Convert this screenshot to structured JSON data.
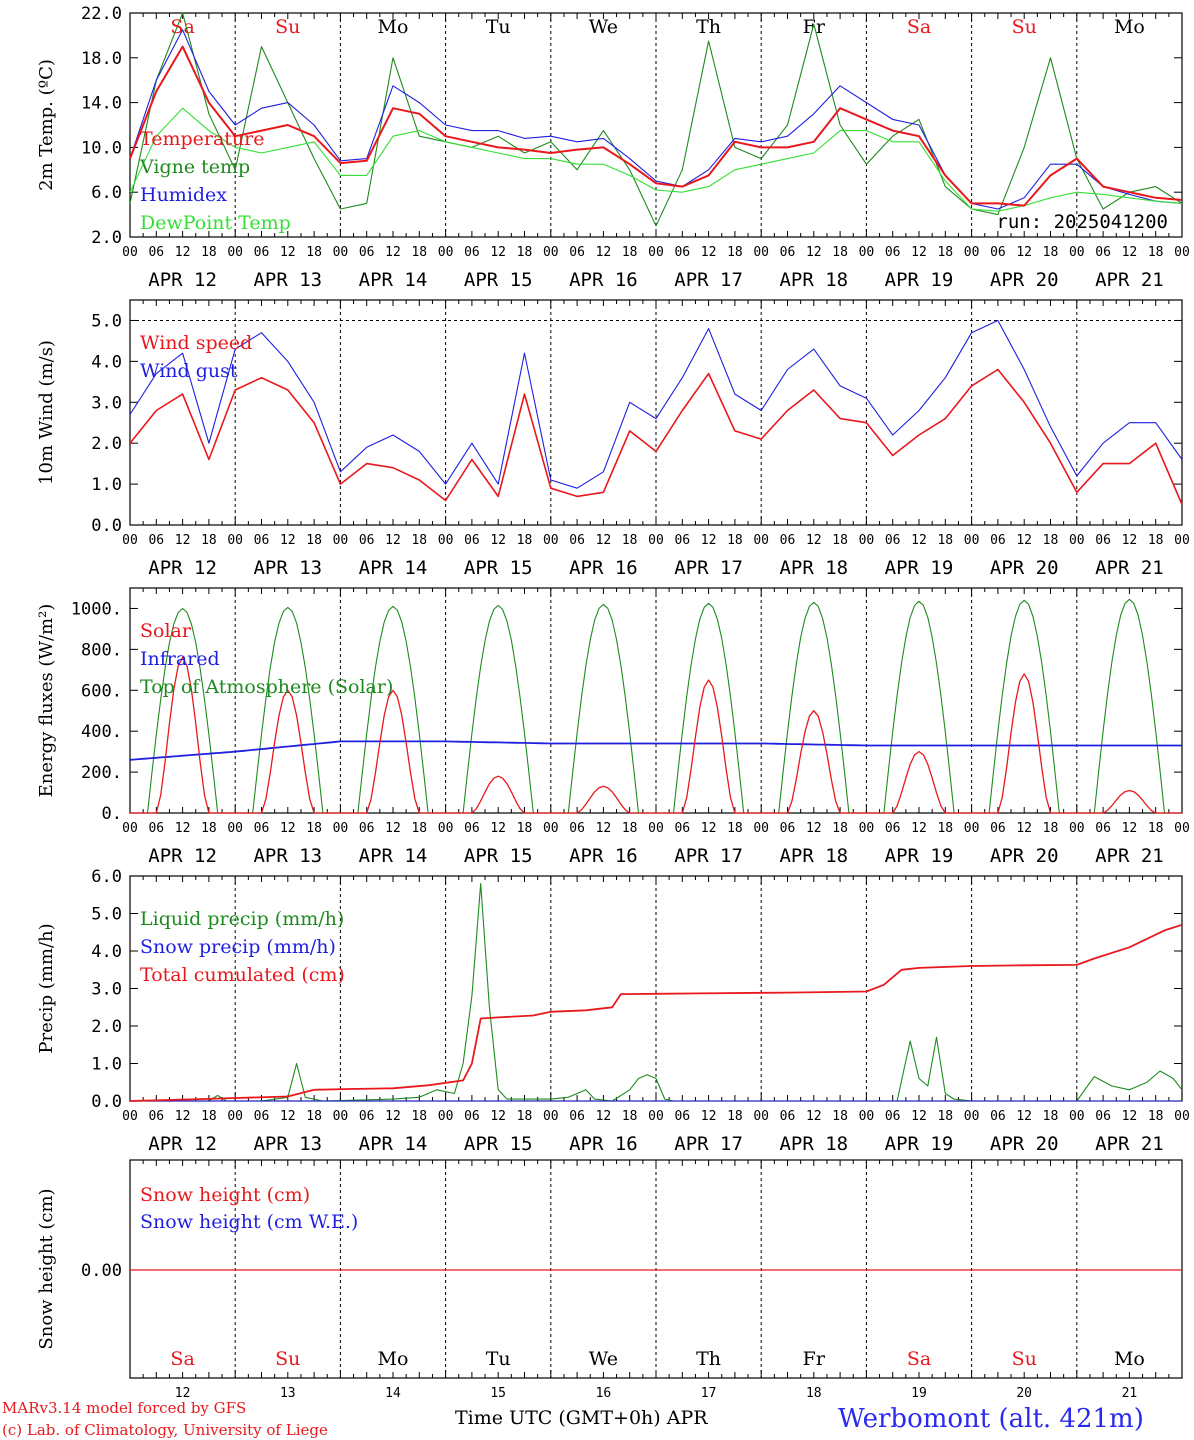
{
  "colors": {
    "red": "#e8181d",
    "green": "#1f8a1f",
    "blue": "#1f1fe0",
    "lime": "#33e033",
    "black": "#000000",
    "title_blue": "#2a2aee"
  },
  "days": [
    "Sa",
    "Su",
    "Mo",
    "Tu",
    "We",
    "Th",
    "Fr",
    "Sa",
    "Su",
    "Mo"
  ],
  "day_colors": [
    "red",
    "red",
    "black",
    "black",
    "black",
    "black",
    "black",
    "red",
    "red",
    "black"
  ],
  "date_labels": [
    "APR 12",
    "APR 13",
    "APR 14",
    "APR 15",
    "APR 16",
    "APR 17",
    "APR 18",
    "APR 19",
    "APR 20",
    "APR 21"
  ],
  "hour_labels": [
    "00",
    "06",
    "12",
    "18"
  ],
  "day_numbers": [
    "12",
    "13",
    "14",
    "15",
    "16",
    "17",
    "18",
    "19",
    "20",
    "21"
  ],
  "footer": {
    "model": "MARv3.14 model forced by GFS",
    "lab": "(c) Lab. of Climatology, University of Liege",
    "xlabel": "Time UTC (GMT+0h) APR",
    "station": "Werbomont (alt. 421m)"
  },
  "chart_data": [
    {
      "type": "line",
      "ylabel": "2m Temp. (ºC)",
      "ylim": [
        2.0,
        22.0
      ],
      "yticks": [
        "2.0",
        "6.0",
        "10.0",
        "14.0",
        "18.0",
        "22.0"
      ],
      "annotation": "run: 2025041200",
      "x_hours": [
        0,
        6,
        12,
        18,
        24,
        30,
        36,
        42,
        48,
        54,
        60,
        66,
        72,
        78,
        84,
        90,
        96,
        102,
        108,
        114,
        120,
        126,
        132,
        138,
        144,
        150,
        156,
        162,
        168,
        174,
        180,
        186,
        192,
        198,
        204,
        210,
        216,
        222,
        228,
        234,
        240
      ],
      "series": [
        {
          "name": "Temperature",
          "color": "red",
          "values": [
            9.0,
            15.0,
            19.0,
            14.0,
            11.0,
            11.5,
            12.0,
            11.0,
            8.6,
            8.8,
            13.5,
            13.0,
            11.0,
            10.5,
            10.0,
            9.8,
            9.5,
            9.8,
            10.0,
            8.5,
            6.8,
            6.5,
            7.5,
            10.5,
            10.0,
            10.0,
            10.5,
            13.5,
            12.5,
            11.5,
            11.0,
            7.5,
            5.0,
            5.0,
            4.8,
            7.5,
            9.0,
            6.5,
            6.0,
            5.5,
            5.3
          ]
        },
        {
          "name": "Vigne temp",
          "color": "green",
          "values": [
            5.0,
            16.0,
            22.0,
            13.0,
            8.0,
            19.0,
            14.0,
            9.0,
            4.5,
            5.0,
            18.0,
            11.0,
            10.5,
            10.0,
            11.0,
            9.5,
            10.5,
            8.0,
            11.5,
            8.0,
            3.0,
            8.0,
            19.5,
            10.0,
            9.0,
            12.0,
            21.0,
            12.0,
            8.5,
            11.0,
            12.5,
            6.5,
            4.5,
            4.0,
            10.0,
            18.0,
            9.0,
            4.5,
            6.0,
            6.5,
            5.0
          ]
        },
        {
          "name": "Humidex",
          "color": "blue",
          "values": [
            9.0,
            16.0,
            20.5,
            15.0,
            12.0,
            13.5,
            14.0,
            12.0,
            8.8,
            9.0,
            15.5,
            14.0,
            12.0,
            11.5,
            11.5,
            10.8,
            11.0,
            10.5,
            10.8,
            9.0,
            7.0,
            6.5,
            8.0,
            10.8,
            10.5,
            11.0,
            13.0,
            15.5,
            14.0,
            12.5,
            12.0,
            7.5,
            5.0,
            4.5,
            5.5,
            8.5,
            8.5,
            6.5,
            5.8,
            5.2,
            5.0
          ]
        },
        {
          "name": "DewPoint Temp",
          "color": "lime",
          "values": [
            6.0,
            11.0,
            13.5,
            11.5,
            10.0,
            9.5,
            10.0,
            10.5,
            7.5,
            7.5,
            11.0,
            11.5,
            10.5,
            10.0,
            9.5,
            9.0,
            9.0,
            8.5,
            8.5,
            7.5,
            6.2,
            6.0,
            6.5,
            8.0,
            8.5,
            9.0,
            9.5,
            11.5,
            11.5,
            10.5,
            10.5,
            7.0,
            4.5,
            4.3,
            4.8,
            5.5,
            6.0,
            5.8,
            5.5,
            5.2,
            5.0
          ]
        }
      ]
    },
    {
      "type": "line",
      "ylabel": "10m Wind (m/s)",
      "ylim": [
        0.0,
        5.5
      ],
      "yticks": [
        "0.0",
        "1.0",
        "2.0",
        "3.0",
        "4.0",
        "5.0"
      ],
      "dashed_y": 5.0,
      "x_hours": [
        0,
        6,
        12,
        18,
        24,
        30,
        36,
        42,
        48,
        54,
        60,
        66,
        72,
        78,
        84,
        90,
        96,
        102,
        108,
        114,
        120,
        126,
        132,
        138,
        144,
        150,
        156,
        162,
        168,
        174,
        180,
        186,
        192,
        198,
        204,
        210,
        216,
        222,
        228,
        234,
        240
      ],
      "series": [
        {
          "name": "Wind speed",
          "color": "red",
          "values": [
            2.0,
            2.8,
            3.2,
            1.6,
            3.3,
            3.6,
            3.3,
            2.5,
            1.0,
            1.5,
            1.4,
            1.1,
            0.6,
            1.6,
            0.7,
            3.2,
            0.9,
            0.7,
            0.8,
            2.3,
            1.8,
            2.8,
            3.7,
            2.3,
            2.1,
            2.8,
            3.3,
            2.6,
            2.5,
            1.7,
            2.2,
            2.6,
            3.4,
            3.8,
            3.0,
            2.0,
            0.8,
            1.5,
            1.5,
            2.0,
            0.5
          ]
        },
        {
          "name": "Wind gust",
          "color": "blue",
          "values": [
            2.7,
            3.7,
            4.2,
            2.0,
            4.3,
            4.7,
            4.0,
            3.0,
            1.3,
            1.9,
            2.2,
            1.8,
            1.0,
            2.0,
            1.0,
            4.2,
            1.1,
            0.9,
            1.3,
            3.0,
            2.6,
            3.6,
            4.8,
            3.2,
            2.8,
            3.8,
            4.3,
            3.4,
            3.1,
            2.2,
            2.8,
            3.6,
            4.7,
            5.0,
            3.8,
            2.4,
            1.2,
            2.0,
            2.5,
            2.5,
            1.6
          ]
        }
      ]
    },
    {
      "type": "line",
      "ylabel": "Energy fluxes (W/m²)",
      "ylim": [
        0,
        1100
      ],
      "yticks": [
        "0.",
        "200.",
        "400.",
        "600.",
        "800.",
        "1000."
      ],
      "days_solar_peak": [
        760,
        600,
        600,
        180,
        130,
        650,
        500,
        300,
        680,
        110
      ],
      "toa_peak": [
        1000,
        1005,
        1010,
        1015,
        1020,
        1025,
        1030,
        1035,
        1040,
        1045
      ],
      "infrared": [
        260,
        300,
        350,
        350,
        340,
        340,
        340,
        330,
        330,
        330
      ],
      "series": [
        {
          "name": "Solar",
          "color": "red"
        },
        {
          "name": "Infrared",
          "color": "blue"
        },
        {
          "name": "Top of Atmosphere (Solar)",
          "color": "green"
        }
      ]
    },
    {
      "type": "line",
      "ylabel": "Precip (mm/h)",
      "ylim": [
        0.0,
        6.0
      ],
      "yticks": [
        "0.0",
        "1.0",
        "2.0",
        "3.0",
        "4.0",
        "5.0",
        "6.0"
      ],
      "series": [
        {
          "name": "Liquid precip (mm/h)",
          "color": "green",
          "points": [
            [
              0,
              0
            ],
            [
              18,
              0
            ],
            [
              20,
              0.15
            ],
            [
              22,
              0
            ],
            [
              30,
              0
            ],
            [
              36,
              0.1
            ],
            [
              38,
              1.0
            ],
            [
              40,
              0.1
            ],
            [
              44,
              0
            ],
            [
              60,
              0.05
            ],
            [
              66,
              0.1
            ],
            [
              70,
              0.3
            ],
            [
              74,
              0.2
            ],
            [
              76,
              1.0
            ],
            [
              78,
              2.8
            ],
            [
              80,
              5.8
            ],
            [
              82,
              2.5
            ],
            [
              84,
              0.3
            ],
            [
              86,
              0.05
            ],
            [
              96,
              0.05
            ],
            [
              100,
              0.1
            ],
            [
              104,
              0.3
            ],
            [
              106,
              0.05
            ],
            [
              110,
              0
            ],
            [
              114,
              0.3
            ],
            [
              116,
              0.6
            ],
            [
              118,
              0.7
            ],
            [
              120,
              0.6
            ],
            [
              122,
              0.05
            ],
            [
              124,
              0
            ],
            [
              175,
              0
            ],
            [
              178,
              1.6
            ],
            [
              180,
              0.6
            ],
            [
              182,
              0.4
            ],
            [
              184,
              1.7
            ],
            [
              186,
              0.2
            ],
            [
              188,
              0.05
            ],
            [
              192,
              0
            ],
            [
              216,
              0
            ],
            [
              220,
              0.65
            ],
            [
              224,
              0.4
            ],
            [
              228,
              0.3
            ],
            [
              232,
              0.5
            ],
            [
              235,
              0.8
            ],
            [
              238,
              0.6
            ],
            [
              240,
              0.3
            ]
          ]
        },
        {
          "name": "Snow precip (mm/h)",
          "color": "blue",
          "points": [
            [
              0,
              0
            ],
            [
              240,
              0
            ]
          ]
        },
        {
          "name": "Total cumulated (cm)",
          "color": "red",
          "points": [
            [
              0,
              0
            ],
            [
              16,
              0.05
            ],
            [
              24,
              0.08
            ],
            [
              36,
              0.12
            ],
            [
              42,
              0.3
            ],
            [
              50,
              0.32
            ],
            [
              60,
              0.34
            ],
            [
              68,
              0.42
            ],
            [
              76,
              0.55
            ],
            [
              78,
              1.0
            ],
            [
              80,
              2.2
            ],
            [
              84,
              2.23
            ],
            [
              92,
              2.28
            ],
            [
              96,
              2.38
            ],
            [
              104,
              2.42
            ],
            [
              110,
              2.5
            ],
            [
              112,
              2.85
            ],
            [
              120,
              2.86
            ],
            [
              130,
              2.87
            ],
            [
              150,
              2.89
            ],
            [
              168,
              2.92
            ],
            [
              172,
              3.1
            ],
            [
              176,
              3.5
            ],
            [
              180,
              3.55
            ],
            [
              192,
              3.6
            ],
            [
              204,
              3.62
            ],
            [
              216,
              3.63
            ],
            [
              220,
              3.8
            ],
            [
              228,
              4.1
            ],
            [
              236,
              4.55
            ],
            [
              240,
              4.7
            ]
          ]
        }
      ]
    },
    {
      "type": "line",
      "ylabel": "Snow height (cm)",
      "yticks": [
        "0.00"
      ],
      "series": [
        {
          "name": "Snow height (cm)",
          "color": "red",
          "values": [
            0.0,
            0.0
          ]
        },
        {
          "name": "Snow height (cm W.E.)",
          "color": "blue",
          "values": [
            0.0,
            0.0
          ]
        }
      ]
    }
  ]
}
